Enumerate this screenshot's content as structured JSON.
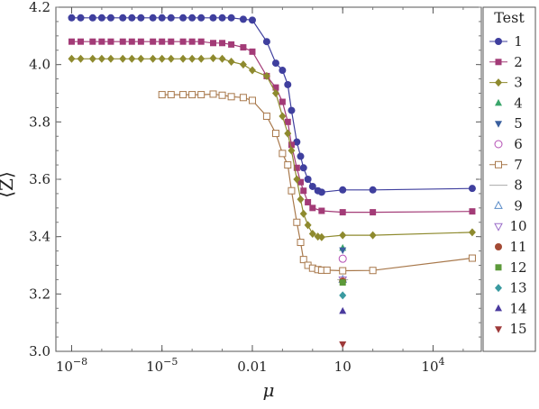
{
  "chart_data": {
    "type": "line",
    "xlabel": "μ",
    "ylabel": "⟨Z⟩",
    "x_scale": "log",
    "xlim": [
      3e-09,
      400000
    ],
    "ylim": [
      3.0,
      4.2
    ],
    "x_ticks": [
      {
        "value": 1e-08,
        "base": "10",
        "exp": "−8"
      },
      {
        "value": 1e-05,
        "base": "10",
        "exp": "−5"
      },
      {
        "value": 0.01,
        "label": "0.01"
      },
      {
        "value": 10,
        "label": "10"
      },
      {
        "value": 10000,
        "base": "10",
        "exp": "4"
      }
    ],
    "y_ticks": [
      "3.0",
      "3.2",
      "3.4",
      "3.6",
      "3.8",
      "4.0",
      "4.2"
    ],
    "legend": {
      "title": "Test",
      "placement": "right"
    },
    "series": [
      {
        "name": "1",
        "color": "#3f3f9e",
        "marker": "circle",
        "x": [
          1e-08,
          2e-08,
          5e-08,
          1e-07,
          2e-07,
          5e-07,
          1e-06,
          2e-06,
          5e-06,
          1e-05,
          2e-05,
          5e-05,
          0.0001,
          0.0002,
          0.0005,
          0.001,
          0.002,
          0.005,
          0.01,
          0.03,
          0.06,
          0.1,
          0.15,
          0.2,
          0.3,
          0.4,
          0.5,
          0.7,
          1,
          1.5,
          2,
          10,
          100,
          200000
        ],
        "y": [
          4.163,
          4.163,
          4.163,
          4.163,
          4.163,
          4.163,
          4.163,
          4.163,
          4.163,
          4.163,
          4.163,
          4.163,
          4.163,
          4.163,
          4.163,
          4.163,
          4.163,
          4.158,
          4.155,
          4.08,
          4.005,
          3.98,
          3.93,
          3.84,
          3.73,
          3.68,
          3.64,
          3.6,
          3.575,
          3.56,
          3.555,
          3.563,
          3.563,
          3.568
        ]
      },
      {
        "name": "2",
        "color": "#a33b77",
        "marker": "square",
        "x": [
          1e-08,
          2e-08,
          5e-08,
          1e-07,
          2e-07,
          5e-07,
          1e-06,
          2e-06,
          5e-06,
          1e-05,
          2e-05,
          5e-05,
          0.0001,
          0.0002,
          0.0005,
          0.001,
          0.002,
          0.005,
          0.01,
          0.03,
          0.06,
          0.1,
          0.15,
          0.2,
          0.3,
          0.4,
          0.5,
          0.7,
          1,
          2,
          10,
          100,
          200000
        ],
        "y": [
          4.08,
          4.08,
          4.08,
          4.08,
          4.08,
          4.08,
          4.08,
          4.08,
          4.08,
          4.08,
          4.08,
          4.08,
          4.08,
          4.08,
          4.075,
          4.075,
          4.07,
          4.06,
          4.045,
          3.96,
          3.92,
          3.87,
          3.8,
          3.72,
          3.64,
          3.59,
          3.56,
          3.52,
          3.5,
          3.49,
          3.485,
          3.485,
          3.488
        ]
      },
      {
        "name": "3",
        "color": "#8e8a2e",
        "marker": "diamond",
        "x": [
          1e-08,
          2e-08,
          5e-08,
          1e-07,
          2e-07,
          5e-07,
          1e-06,
          2e-06,
          5e-06,
          1e-05,
          2e-05,
          5e-05,
          0.0001,
          0.0002,
          0.0005,
          0.001,
          0.002,
          0.005,
          0.01,
          0.03,
          0.06,
          0.1,
          0.15,
          0.2,
          0.3,
          0.4,
          0.5,
          0.7,
          1,
          1.5,
          2,
          10,
          100,
          200000
        ],
        "y": [
          4.02,
          4.02,
          4.02,
          4.02,
          4.02,
          4.02,
          4.02,
          4.02,
          4.02,
          4.02,
          4.02,
          4.02,
          4.02,
          4.02,
          4.022,
          4.02,
          4.01,
          4.0,
          3.98,
          3.96,
          3.9,
          3.82,
          3.76,
          3.7,
          3.6,
          3.53,
          3.48,
          3.44,
          3.41,
          3.4,
          3.398,
          3.405,
          3.405,
          3.415
        ]
      },
      {
        "name": "7",
        "color": "#a8784b",
        "marker": "open-square",
        "x": [
          1e-05,
          2e-05,
          5e-05,
          0.0001,
          0.0002,
          0.0005,
          0.001,
          0.002,
          0.005,
          0.01,
          0.03,
          0.06,
          0.1,
          0.15,
          0.2,
          0.3,
          0.4,
          0.5,
          0.7,
          1,
          1.5,
          2,
          3,
          10,
          100,
          200000
        ],
        "y": [
          3.895,
          3.895,
          3.895,
          3.895,
          3.895,
          3.897,
          3.893,
          3.888,
          3.885,
          3.875,
          3.82,
          3.76,
          3.69,
          3.65,
          3.56,
          3.45,
          3.38,
          3.32,
          3.3,
          3.29,
          3.285,
          3.283,
          3.283,
          3.281,
          3.282,
          3.325
        ]
      }
    ],
    "points_at_x10": [
      {
        "name": "4",
        "color": "#3aa66b",
        "marker": "triangle-up",
        "y": 3.36
      },
      {
        "name": "5",
        "color": "#3a5f9e",
        "marker": "triangle-down",
        "y": 3.353
      },
      {
        "name": "6",
        "color": "#b44fb4",
        "marker": "open-circle",
        "y": 3.323
      },
      {
        "name": "8",
        "color": "#aaaaaa",
        "marker": "none",
        "y": 3.25
      },
      {
        "name": "9",
        "color": "#5a8cc8",
        "marker": "open-triangle-up",
        "y": 3.25
      },
      {
        "name": "10",
        "color": "#9a6cc8",
        "marker": "open-triangle-down",
        "y": 3.25
      },
      {
        "name": "11",
        "color": "#a34a34",
        "marker": "circle",
        "y": 3.245
      },
      {
        "name": "12",
        "color": "#5c9a3a",
        "marker": "square",
        "y": 3.24
      },
      {
        "name": "13",
        "color": "#3a9aa0",
        "marker": "diamond",
        "y": 3.195
      },
      {
        "name": "14",
        "color": "#4a3a9e",
        "marker": "triangle-up",
        "y": 3.14
      },
      {
        "name": "15",
        "color": "#9e3a3a",
        "marker": "triangle-down",
        "y": 3.025
      }
    ]
  }
}
